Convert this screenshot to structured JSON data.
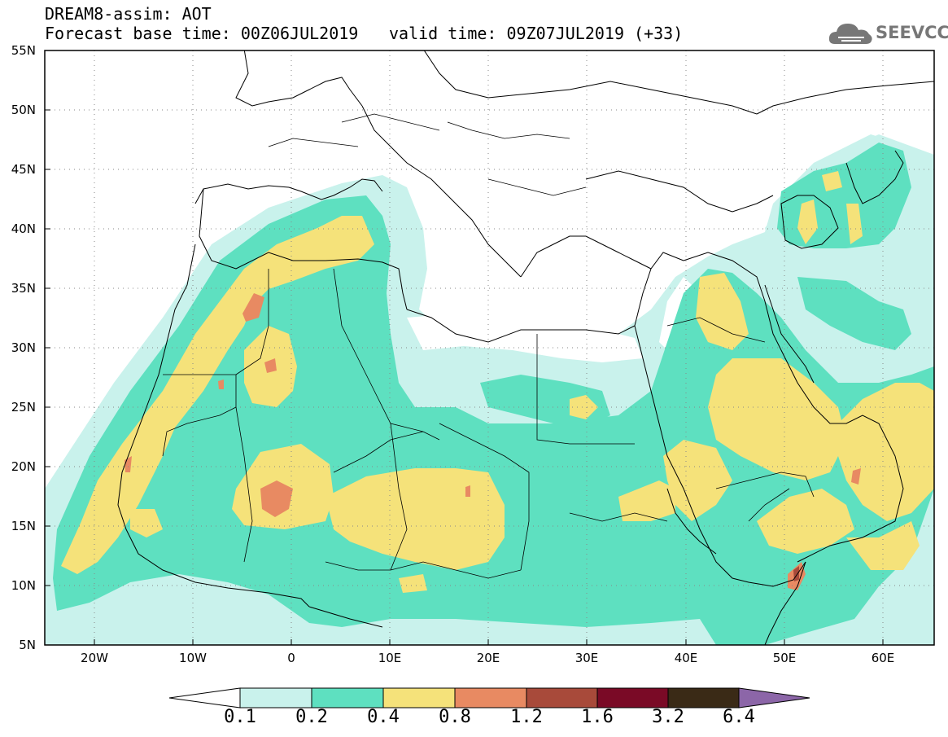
{
  "header": {
    "line1": "DREAM8-assim: AOT",
    "line2": "Forecast base time: 00Z06JUL2019",
    "valid": "valid time: 09Z07JUL2019 (+33)"
  },
  "logo": {
    "text": "SEEVCCC",
    "icon": "cloud-icon",
    "color": "#777777"
  },
  "map": {
    "lat_labels": [
      "55N",
      "50N",
      "45N",
      "40N",
      "35N",
      "30N",
      "25N",
      "20N",
      "15N",
      "10N",
      "5N"
    ],
    "lon_labels": [
      "20W",
      "10W",
      "0",
      "10E",
      "20E",
      "30E",
      "40E",
      "50E",
      "60E"
    ],
    "lat_range": [
      5,
      55
    ],
    "lon_range": [
      -25,
      65
    ],
    "grid": "dotted"
  },
  "colorbar": {
    "labels": [
      "0.1",
      "0.2",
      "0.4",
      "0.8",
      "1.2",
      "1.6",
      "3.2",
      "6.4"
    ],
    "colors": [
      "#ffffff",
      "#c9f2ec",
      "#5ee0c0",
      "#f5e27a",
      "#e88a62",
      "#a84a3a",
      "#7a0a26",
      "#3a2a16",
      "#8c66a8"
    ]
  }
}
